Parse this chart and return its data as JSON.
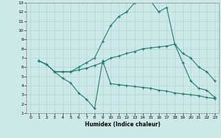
{
  "xlabel": "Humidex (Indice chaleur)",
  "xlim": [
    -0.5,
    23.5
  ],
  "ylim": [
    1,
    13
  ],
  "xticks": [
    0,
    1,
    2,
    3,
    4,
    5,
    6,
    7,
    8,
    9,
    10,
    11,
    12,
    13,
    14,
    15,
    16,
    17,
    18,
    19,
    20,
    21,
    22,
    23
  ],
  "yticks": [
    1,
    2,
    3,
    4,
    5,
    6,
    7,
    8,
    9,
    10,
    11,
    12,
    13
  ],
  "bg_color": "#cce8e8",
  "line_color": "#1a7a6a",
  "grid_color": "#aad4d4",
  "line1_x": [
    1,
    2,
    3,
    4,
    5,
    6,
    7,
    8,
    9,
    10,
    11,
    12,
    13,
    14,
    15,
    16,
    17,
    18,
    19,
    20,
    21,
    22,
    23
  ],
  "line1_y": [
    6.7,
    6.3,
    5.5,
    5.5,
    5.5,
    6.0,
    6.5,
    7.0,
    8.8,
    10.5,
    11.5,
    12.0,
    13.0,
    13.2,
    13.2,
    12.0,
    12.5,
    8.5,
    6.5,
    4.5,
    3.7,
    3.5,
    2.7
  ],
  "line2_x": [
    1,
    2,
    3,
    4,
    5,
    6,
    7,
    8,
    9,
    10,
    11,
    12,
    13,
    14,
    15,
    16,
    17,
    18,
    19,
    20,
    21,
    22,
    23
  ],
  "line2_y": [
    6.7,
    6.3,
    5.5,
    4.8,
    4.3,
    3.2,
    2.5,
    1.5,
    6.7,
    4.2,
    4.1,
    4.0,
    3.9,
    3.8,
    3.7,
    3.5,
    3.4,
    3.2,
    3.1,
    3.0,
    2.9,
    2.7,
    2.6
  ],
  "line3_x": [
    1,
    2,
    3,
    4,
    5,
    6,
    7,
    8,
    9,
    10,
    11,
    12,
    13,
    14,
    15,
    16,
    17,
    18,
    19,
    20,
    21,
    22,
    23
  ],
  "line3_y": [
    6.7,
    6.3,
    5.5,
    5.5,
    5.5,
    5.7,
    5.9,
    6.2,
    6.5,
    7.0,
    7.2,
    7.5,
    7.7,
    8.0,
    8.1,
    8.2,
    8.3,
    8.5,
    7.5,
    7.0,
    6.0,
    5.5,
    4.5
  ]
}
